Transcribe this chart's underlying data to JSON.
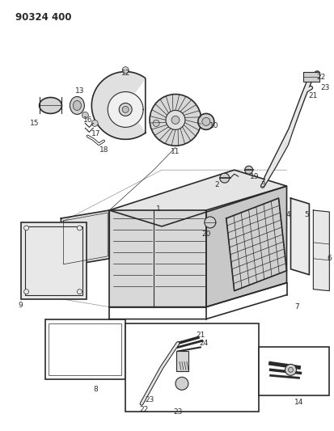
{
  "title": "90324 400",
  "bg_color": "#ffffff",
  "line_color": "#2a2a2a",
  "fig_width": 4.13,
  "fig_height": 5.33,
  "dpi": 100
}
